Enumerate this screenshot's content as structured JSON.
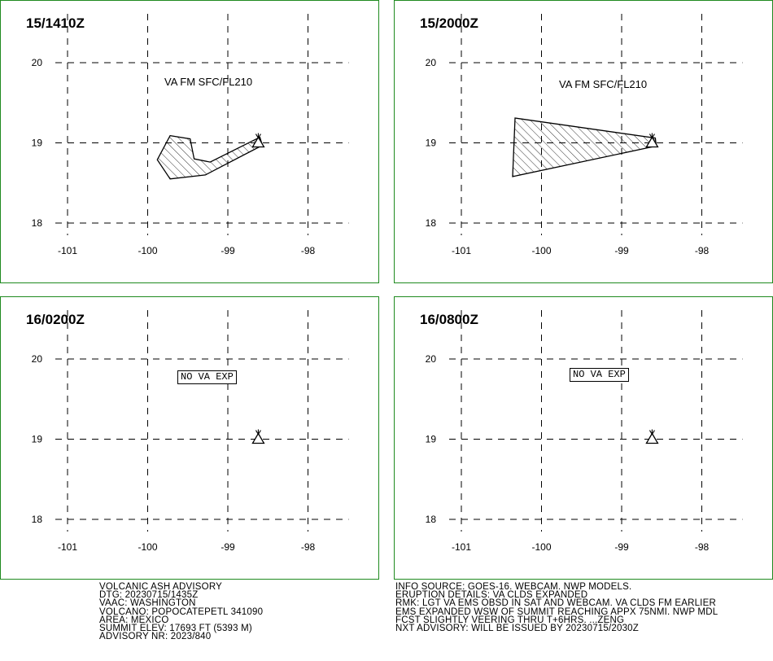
{
  "map": {
    "lon_ticks": [
      "-101",
      "-100",
      "-99",
      "-98"
    ],
    "lat_ticks": [
      "20",
      "19",
      "18"
    ],
    "volcano_lon": -98.62,
    "volcano_lat": 19.02
  },
  "panels": [
    {
      "time": "15/1410Z",
      "label": "VA FM SFC/FL210",
      "no_exp": "",
      "ash_polygon": [
        [
          -99.72,
          19.09
        ],
        [
          -99.47,
          19.05
        ],
        [
          -99.42,
          18.8
        ],
        [
          -99.22,
          18.76
        ],
        [
          -98.6,
          19.07
        ],
        [
          -98.57,
          18.97
        ],
        [
          -99.05,
          18.72
        ],
        [
          -99.28,
          18.6
        ],
        [
          -99.72,
          18.55
        ],
        [
          -99.88,
          18.79
        ]
      ]
    },
    {
      "time": "15/2000Z",
      "label": "VA FM SFC/FL210",
      "no_exp": "",
      "ash_polygon": [
        [
          -100.33,
          19.31
        ],
        [
          -98.58,
          19.06
        ],
        [
          -98.57,
          18.96
        ],
        [
          -100.36,
          18.58
        ]
      ]
    },
    {
      "time": "16/0200Z",
      "label": "",
      "no_exp": "NO VA EXP",
      "ash_polygon": []
    },
    {
      "time": "16/0800Z",
      "label": "",
      "no_exp": "NO VA EXP",
      "ash_polygon": []
    }
  ],
  "advisory_left": [
    "VOLCANIC ASH ADVISORY",
    "DTG: 20230715/1435Z",
    "VAAC: WASHINGTON",
    "VOLCANO: POPOCATEPETL 341090",
    "AREA: MEXICO",
    "SUMMIT ELEV: 17693 FT (5393 M)",
    "ADVISORY NR: 2023/840"
  ],
  "advisory_right": [
    "INFO SOURCE: GOES-16. WEBCAM. NWP MODELS.",
    "ERUPTION DETAILS: VA CLDS EXPANDED",
    "RMK: LGT VA EMS OBSD IN SAT AND WEBCAM. VA CLDS FM EARLIER",
    "EMS EXPANDED WSW OF SUMMIT REACHING APPX 75NMI. NWP MDL",
    "FCST SLIGHTLY VEERING THRU T+6HRS. ...ZENG",
    "NXT ADVISORY: WILL BE ISSUED BY 20230715/2030Z"
  ],
  "colors": {
    "border": "#1f8a1f",
    "lines": "#000000"
  }
}
